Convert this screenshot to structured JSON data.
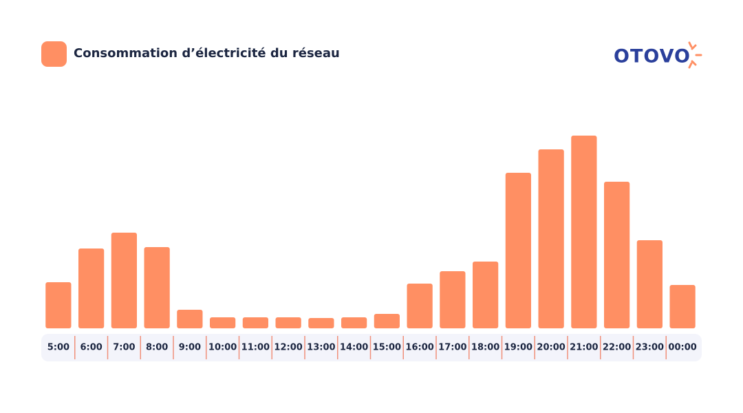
{
  "logo": "OTOVO",
  "chart_data": {
    "type": "bar",
    "categories": [
      "5:00",
      "6:00",
      "7:00",
      "8:00",
      "9:00",
      "10:00",
      "11:00",
      "12:00",
      "13:00",
      "14:00",
      "15:00",
      "16:00",
      "17:00",
      "18:00",
      "19:00",
      "20:00",
      "21:00",
      "22:00",
      "23:00",
      "00:00"
    ],
    "series": [
      {
        "name": "Consommation d’électricité du réseau",
        "color": "#ff8f63",
        "values": [
          67,
          116,
          139,
          118,
          27,
          16,
          16,
          16,
          15,
          16,
          21,
          65,
          83,
          97,
          226,
          260,
          280,
          213,
          128,
          63
        ]
      }
    ],
    "ylim": [
      0,
      300
    ]
  }
}
